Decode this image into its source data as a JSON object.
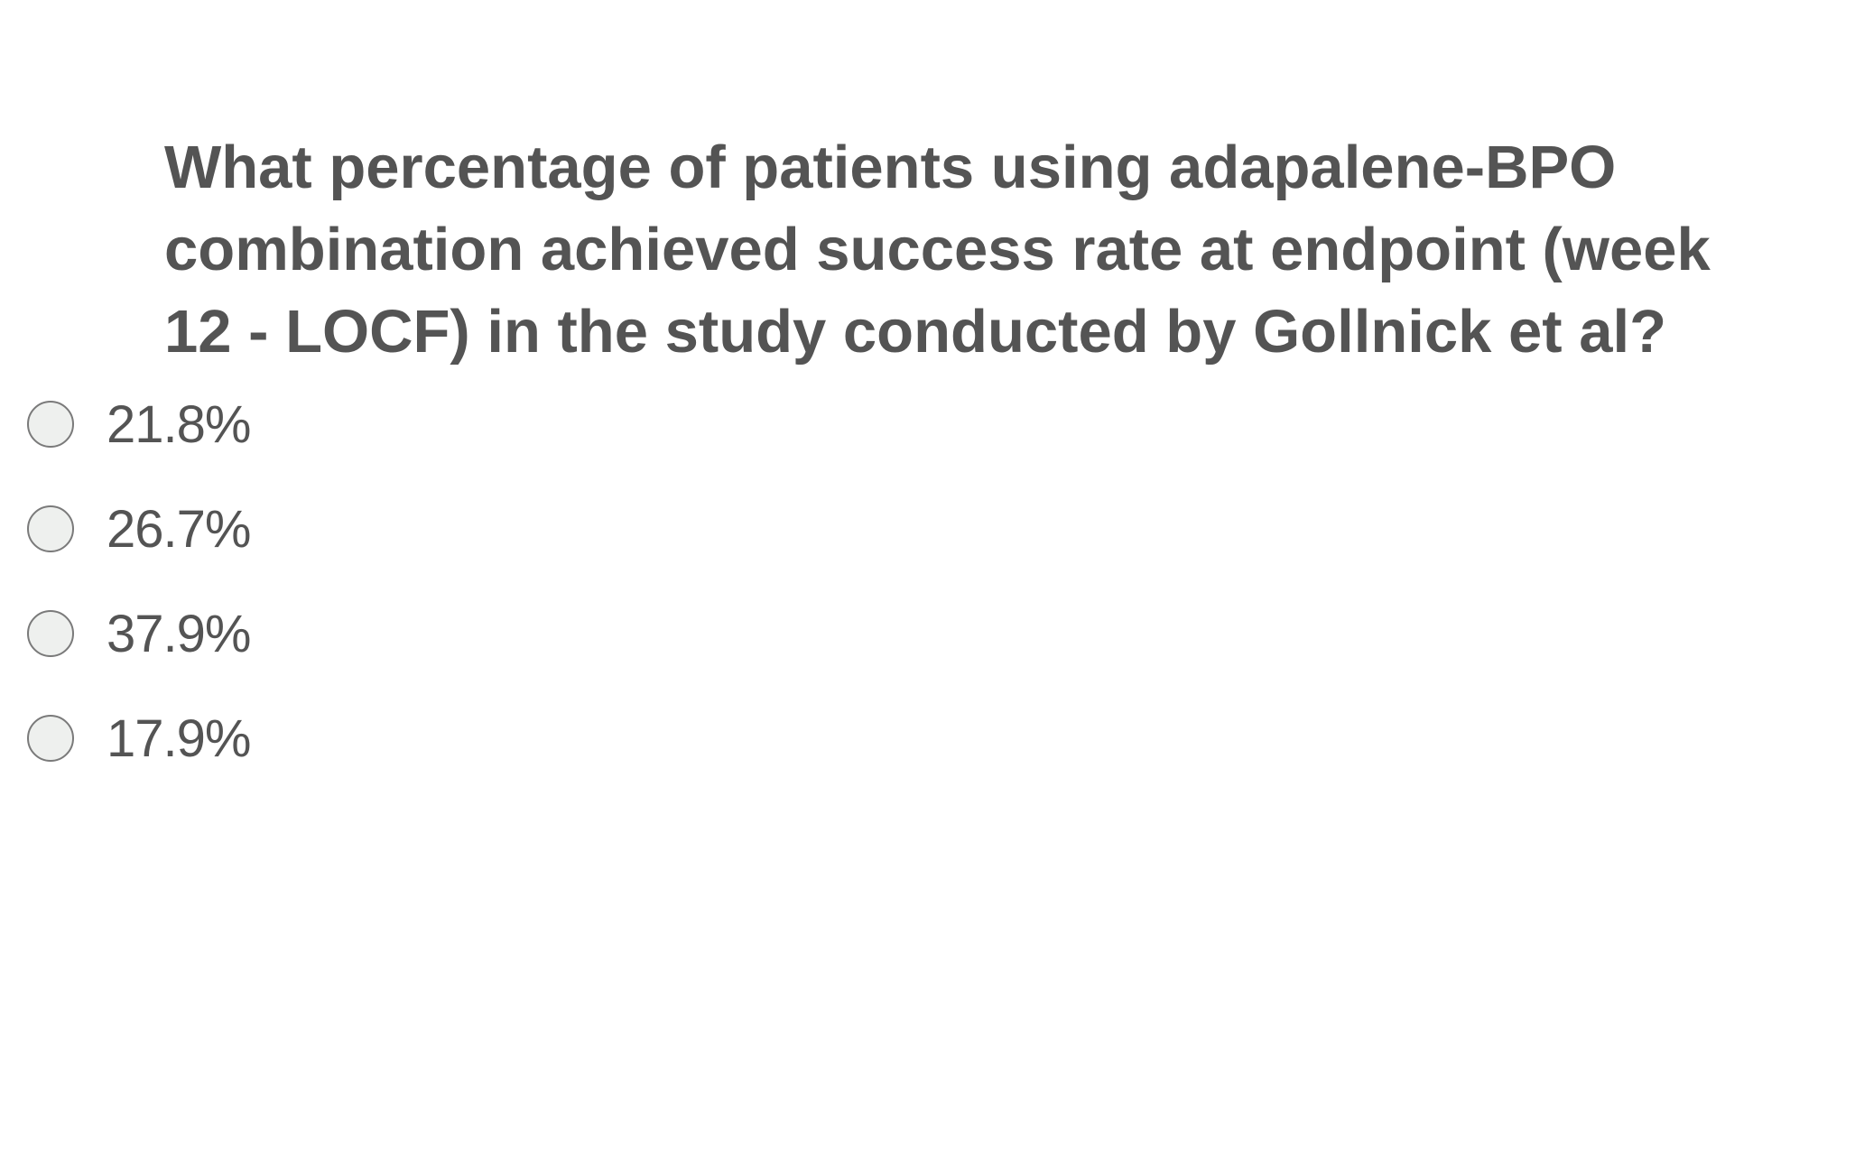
{
  "question": {
    "text": "What percentage of patients using adapalene-BPO combination achieved success rate at endpoint (week 12 - LOCF) in the study conducted by Gollnick et al?"
  },
  "options": [
    {
      "label": "21.8%",
      "selected": false
    },
    {
      "label": "26.7%",
      "selected": false
    },
    {
      "label": "37.9%",
      "selected": false
    },
    {
      "label": "17.9%",
      "selected": false
    }
  ],
  "colors": {
    "text": "#545454",
    "radio_border": "#7a7a7a",
    "radio_fill": "#eef0ee",
    "background": "#ffffff"
  }
}
